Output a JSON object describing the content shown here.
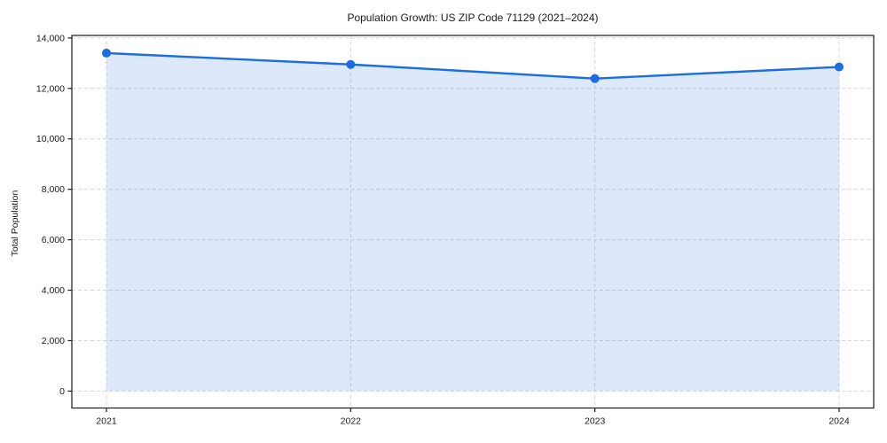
{
  "chart_data": {
    "type": "area",
    "title": "Population Growth: US ZIP Code 71129 (2021–2024)",
    "xlabel": "",
    "ylabel": "Total Population",
    "categories": [
      "2021",
      "2022",
      "2023",
      "2024"
    ],
    "series": [
      {
        "name": "Total Population",
        "values": [
          13400,
          12950,
          12390,
          12850
        ]
      }
    ],
    "yticks": [
      0,
      2000,
      4000,
      6000,
      8000,
      10000,
      12000,
      14000
    ],
    "ytick_labels": [
      "0",
      "2,000",
      "4,000",
      "6,000",
      "8,000",
      "10,000",
      "12,000",
      "14,000"
    ],
    "ylim": [
      -670,
      14100
    ],
    "grid": "dashed-both-axes",
    "legend": "none",
    "marker": "circle",
    "colors": {
      "line": "#1a6ee0",
      "marker": "#1a6ee0",
      "fill": "#1a6ee0",
      "fill_opacity": 0.15,
      "grid": "#d6d6d6",
      "spine": "#1a1a1a",
      "text": "#1a1a1a",
      "background": "#ffffff"
    }
  }
}
